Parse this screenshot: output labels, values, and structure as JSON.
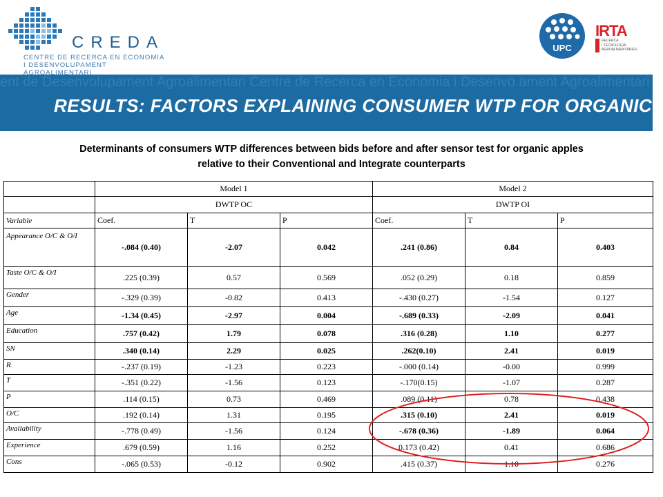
{
  "header": {
    "logo_name": "CREDA",
    "logo_sub_1": "CENTRE DE RECERCA EN ECONOMIA",
    "logo_sub_2": "I DESENVOLUPAMENT AGROALIMENTARI",
    "upc_label": "UPC",
    "irta_label": "IRTA",
    "irta_sub_1": "RECERCA",
    "irta_sub_2": "I TECNOLOGIA",
    "irta_sub_3": "AGROALIMENTÀRIES"
  },
  "band": {
    "background_text": "ent de Desenvolupament Agroalimentari Centre de Recerca en Economia i Desenvo ament Agroalimentari Centre de Recerca en Economia i Desenvolupament Agroalim i Desenvolupament Agroalimentari Centre de Recerca en Economia i Desenvolupam",
    "title": "RESULTS: FACTORS EXPLAINING CONSUMER WTP FOR ORGANIC APPLES"
  },
  "subtitle": {
    "line1": "Determinants of consumers WTP differences between bids before and after sensor test for organic apples",
    "line2": "relative to their Conventional and Integrate counterparts"
  },
  "table": {
    "model1": "Model 1",
    "model2": "Model 2",
    "dep1": "DWTP OC",
    "dep2": "DWTP OI",
    "headers": [
      "Variable",
      "Coef.",
      "T",
      "P",
      "Coef.",
      "T",
      "P"
    ],
    "rows": [
      {
        "variable": "Appearance O/C & O/I",
        "cells": [
          "-.084 (0.40)",
          "-2.07",
          "0.042",
          ".241 (0.86)",
          "0.84",
          "0.403"
        ]
      },
      {
        "variable": "Taste O/C & O/I",
        "cells": [
          ".225 (0.39)",
          "0.57",
          "0.569",
          ".052 (0.29)",
          "0.18",
          "0.859"
        ]
      },
      {
        "variable": "Gender",
        "cells": [
          "-.329 (0.39)",
          "-0.82",
          "0.413",
          "-.430 (0.27)",
          "-1.54",
          "0.127"
        ]
      },
      {
        "variable": "Age",
        "cells": [
          "-1.34 (0.45)",
          "-2.97",
          "0.004",
          "-.689 (0.33)",
          "-2.09",
          "0.041"
        ]
      },
      {
        "variable": "Education",
        "cells": [
          ".757 (0.42)",
          "1.79",
          "0.078",
          ".316 (0.28)",
          "1.10",
          "0.277"
        ]
      },
      {
        "variable": "SN",
        "cells": [
          ".340 (0.14)",
          "2.29",
          "0.025",
          ".262(0.10)",
          "2.41",
          "0.019"
        ]
      },
      {
        "variable": "R",
        "cells": [
          "-.237 (0.19)",
          "-1.23",
          "0.223",
          "-.000 (0.14)",
          "-0.00",
          "0.999"
        ]
      },
      {
        "variable": "T",
        "cells": [
          "-.351 (0.22)",
          "-1.56",
          "0.123",
          "-.170(0.15)",
          "-1.07",
          "0.287"
        ]
      },
      {
        "variable": "P",
        "cells": [
          ".114 (0.15)",
          "0.73",
          "0.469",
          ".089 (0.11)",
          "0.78",
          "0.438"
        ]
      },
      {
        "variable": "O/C",
        "cells": [
          ".192 (0.14)",
          "1.31",
          "0.195",
          ".315 (0.10)",
          "2.41",
          "0.019"
        ]
      },
      {
        "variable": "Availability",
        "cells": [
          "-.778 (0.49)",
          "-1.56",
          "0.124",
          "-.678 (0.36)",
          "-1.89",
          "0.064"
        ]
      },
      {
        "variable": "Experience",
        "cells": [
          ".679 (0.59)",
          "1.16",
          "0.252",
          "0.173 (0.42)",
          "0.41",
          "0.686"
        ]
      },
      {
        "variable": "Cons",
        "cells": [
          "-.065 (0.53)",
          "-0.12",
          "0.902",
          ".415 (0.37)",
          "1.10",
          "0.276"
        ]
      }
    ]
  },
  "colors": {
    "band": "#1d6ba3",
    "brand": "#1f5f93",
    "irta": "#d72428",
    "highlight": "#e02020"
  }
}
